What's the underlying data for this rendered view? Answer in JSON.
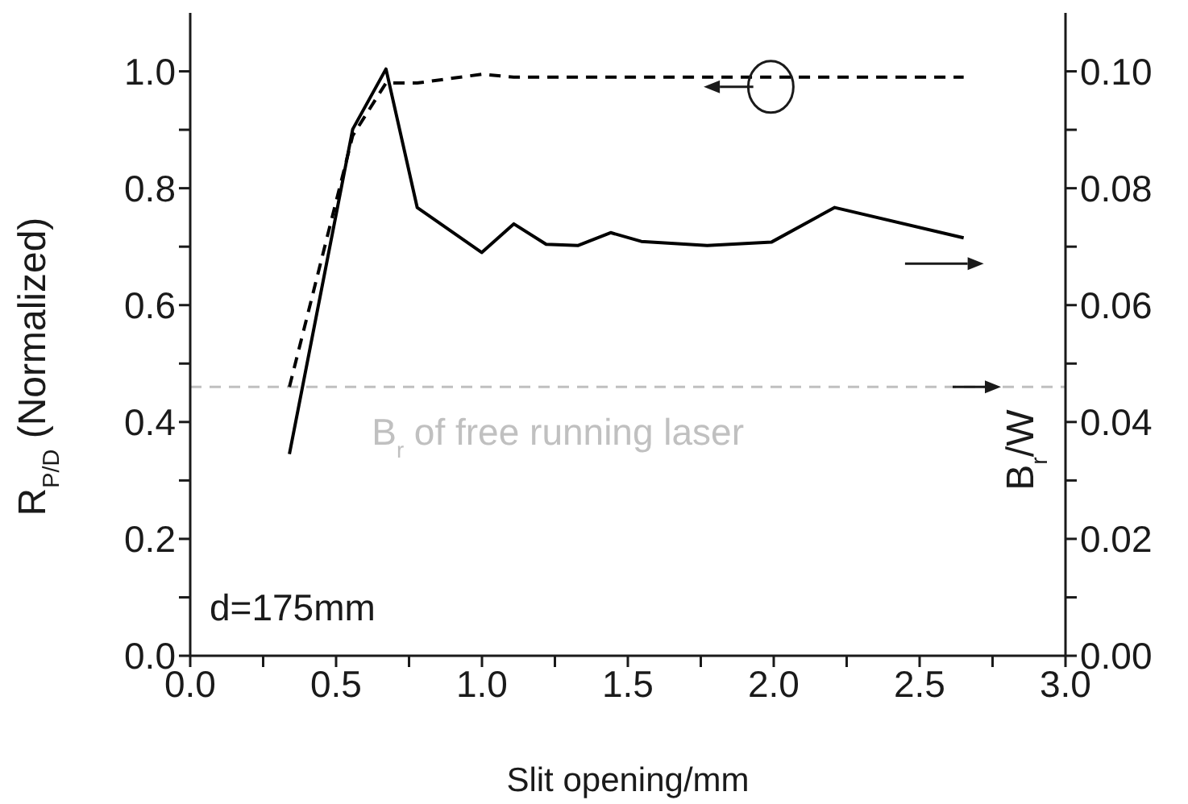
{
  "chart_data": {
    "type": "line",
    "xlabel": "Slit opening/mm",
    "ylabel": "R$_{P/D}$ (Normalized)",
    "y2label": "B$_{r}$/W",
    "x": [
      0.34,
      0.557,
      0.671,
      0.778,
      0.999,
      1.109,
      1.22,
      1.33,
      1.441,
      1.546,
      1.772,
      1.993,
      2.209,
      2.651
    ],
    "series": [
      {
        "color": "#000000",
        "line_style": "dashed",
        "values": [
          0.46,
          0.89,
          0.98,
          0.98,
          0.995,
          0.99,
          0.99,
          0.99,
          0.99,
          0.99,
          0.99,
          0.99,
          0.99,
          0.99
        ]
      },
      {
        "color": "#000000",
        "line_style": "solid",
        "axis": "y2",
        "values": [
          0.0345,
          0.0901,
          0.1004,
          0.0767,
          0.069,
          0.0739,
          0.0704,
          0.0702,
          0.0724,
          0.0709,
          0.0702,
          0.0708,
          0.0767,
          0.0715
        ]
      }
    ],
    "xlim": [
      0,
      3
    ],
    "xticks": [
      {
        "value": 0,
        "label": "0.0"
      },
      {
        "value": 0.25,
        "label": null
      },
      {
        "value": 0.5,
        "label": "0.5"
      },
      {
        "value": 0.75,
        "label": null
      },
      {
        "value": 1,
        "label": "1.0"
      },
      {
        "value": 1.25,
        "label": null
      },
      {
        "value": 1.5,
        "label": "1.5"
      },
      {
        "value": 1.75,
        "label": null
      },
      {
        "value": 2,
        "label": "2.0"
      },
      {
        "value": 2.25,
        "label": null
      },
      {
        "value": 2.5,
        "label": "2.5"
      },
      {
        "value": 2.75,
        "label": null
      },
      {
        "value": 3,
        "label": "3.0"
      }
    ],
    "ylim": [
      0,
      1.1
    ],
    "yticks": [
      {
        "value": 0,
        "label": "0.0"
      },
      {
        "value": 0.1,
        "label": null
      },
      {
        "value": 0.2,
        "label": "0.2"
      },
      {
        "value": 0.3,
        "label": null
      },
      {
        "value": 0.4,
        "label": "0.4"
      },
      {
        "value": 0.5,
        "label": null
      },
      {
        "value": 0.6,
        "label": "0.6"
      },
      {
        "value": 0.7,
        "label": null
      },
      {
        "value": 0.8,
        "label": "0.8"
      },
      {
        "value": 0.9,
        "label": null
      },
      {
        "value": 1,
        "label": "1.0"
      }
    ],
    "y2lim": [
      0,
      0.11
    ],
    "y2ticks": [
      {
        "value": 0,
        "label": "0.00"
      },
      {
        "value": 0.01,
        "label": null
      },
      {
        "value": 0.02,
        "label": "0.02"
      },
      {
        "value": 0.03,
        "label": null
      },
      {
        "value": 0.04,
        "label": "0.04"
      },
      {
        "value": 0.05,
        "label": null
      },
      {
        "value": 0.06,
        "label": "0.06"
      },
      {
        "value": 0.07,
        "label": null
      },
      {
        "value": 0.08,
        "label": "0.08"
      },
      {
        "value": 0.09,
        "label": null
      },
      {
        "value": 0.1,
        "label": "0.10"
      }
    ],
    "ref_lines": [
      {
        "axis": "y",
        "value": 0.46,
        "label": "B$_{r}$ of free running laser",
        "color": "#c0c0c0",
        "line_style": "dashed"
      }
    ],
    "annotations": [
      "d=175mm"
    ],
    "marker": "none"
  }
}
